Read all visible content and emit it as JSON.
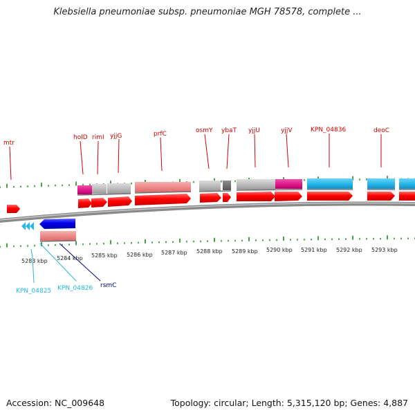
{
  "title": "Klebsiella pneumoniae subsp. pneumoniae MGH 78578, complete ...",
  "footer": {
    "accession": "Accession: NC_009648",
    "summary": "Topology: circular; Length: 5,315,120 bp; Genes: 4,887"
  },
  "colors": {
    "cds_forward": "#ff0000",
    "cds_reverse": "#0000ee",
    "rrna_pink": "#f08a8a",
    "gray": "#bdbdbd",
    "dark_gray": "#707070",
    "magenta": "#e01a8a",
    "sky": "#2ab8ea",
    "tick": "#1a8a1a",
    "label_red": "#cc0000",
    "label_cyan": "#20b8d8",
    "label_navy": "#000088"
  },
  "axis": {
    "kbp_labels": [
      "5283 kbp",
      "5284 kbp",
      "5285 kbp",
      "5286 kbp",
      "5287 kbp",
      "5288 kbp",
      "5289 kbp",
      "5290 kbp",
      "5291 kbp",
      "5292 kbp",
      "5293 kbp"
    ]
  },
  "forward_genes": [
    "mtr",
    "holD",
    "rimI",
    "yjjG",
    "prfC",
    "osmY",
    "ybaT",
    "yjjU",
    "yjjV",
    "KPN_04836",
    "deoC"
  ],
  "reverse_genes": [
    "KPN_04825",
    "KPN_04826",
    "rsmC"
  ]
}
